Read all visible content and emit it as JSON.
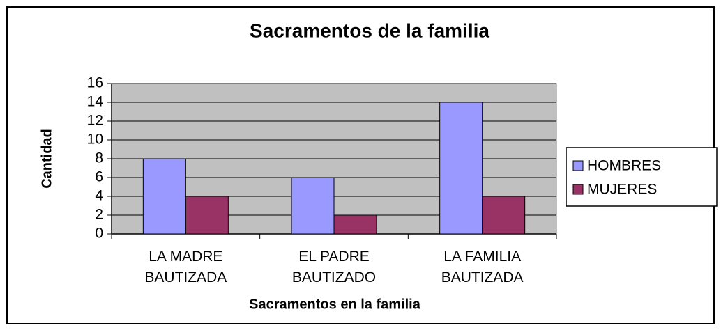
{
  "chart_data": {
    "type": "bar",
    "title": "Sacramentos de la familia",
    "x_label": "Sacramentos en la familia",
    "y_label": "Cantidad",
    "categories": [
      "LA MADRE BAUTIZADA",
      "EL PADRE BAUTIZADO",
      "LA FAMILIA BAUTIZADA"
    ],
    "series": [
      {
        "name": "HOMBRES",
        "color": "#9999ff",
        "values": [
          8,
          6,
          14
        ]
      },
      {
        "name": "MUJERES",
        "color": "#993366",
        "values": [
          4,
          2,
          4
        ]
      }
    ],
    "ylim": [
      0,
      16
    ],
    "yticks": [
      0,
      2,
      4,
      6,
      8,
      10,
      12,
      14,
      16
    ],
    "grid": true,
    "legend": "right"
  }
}
